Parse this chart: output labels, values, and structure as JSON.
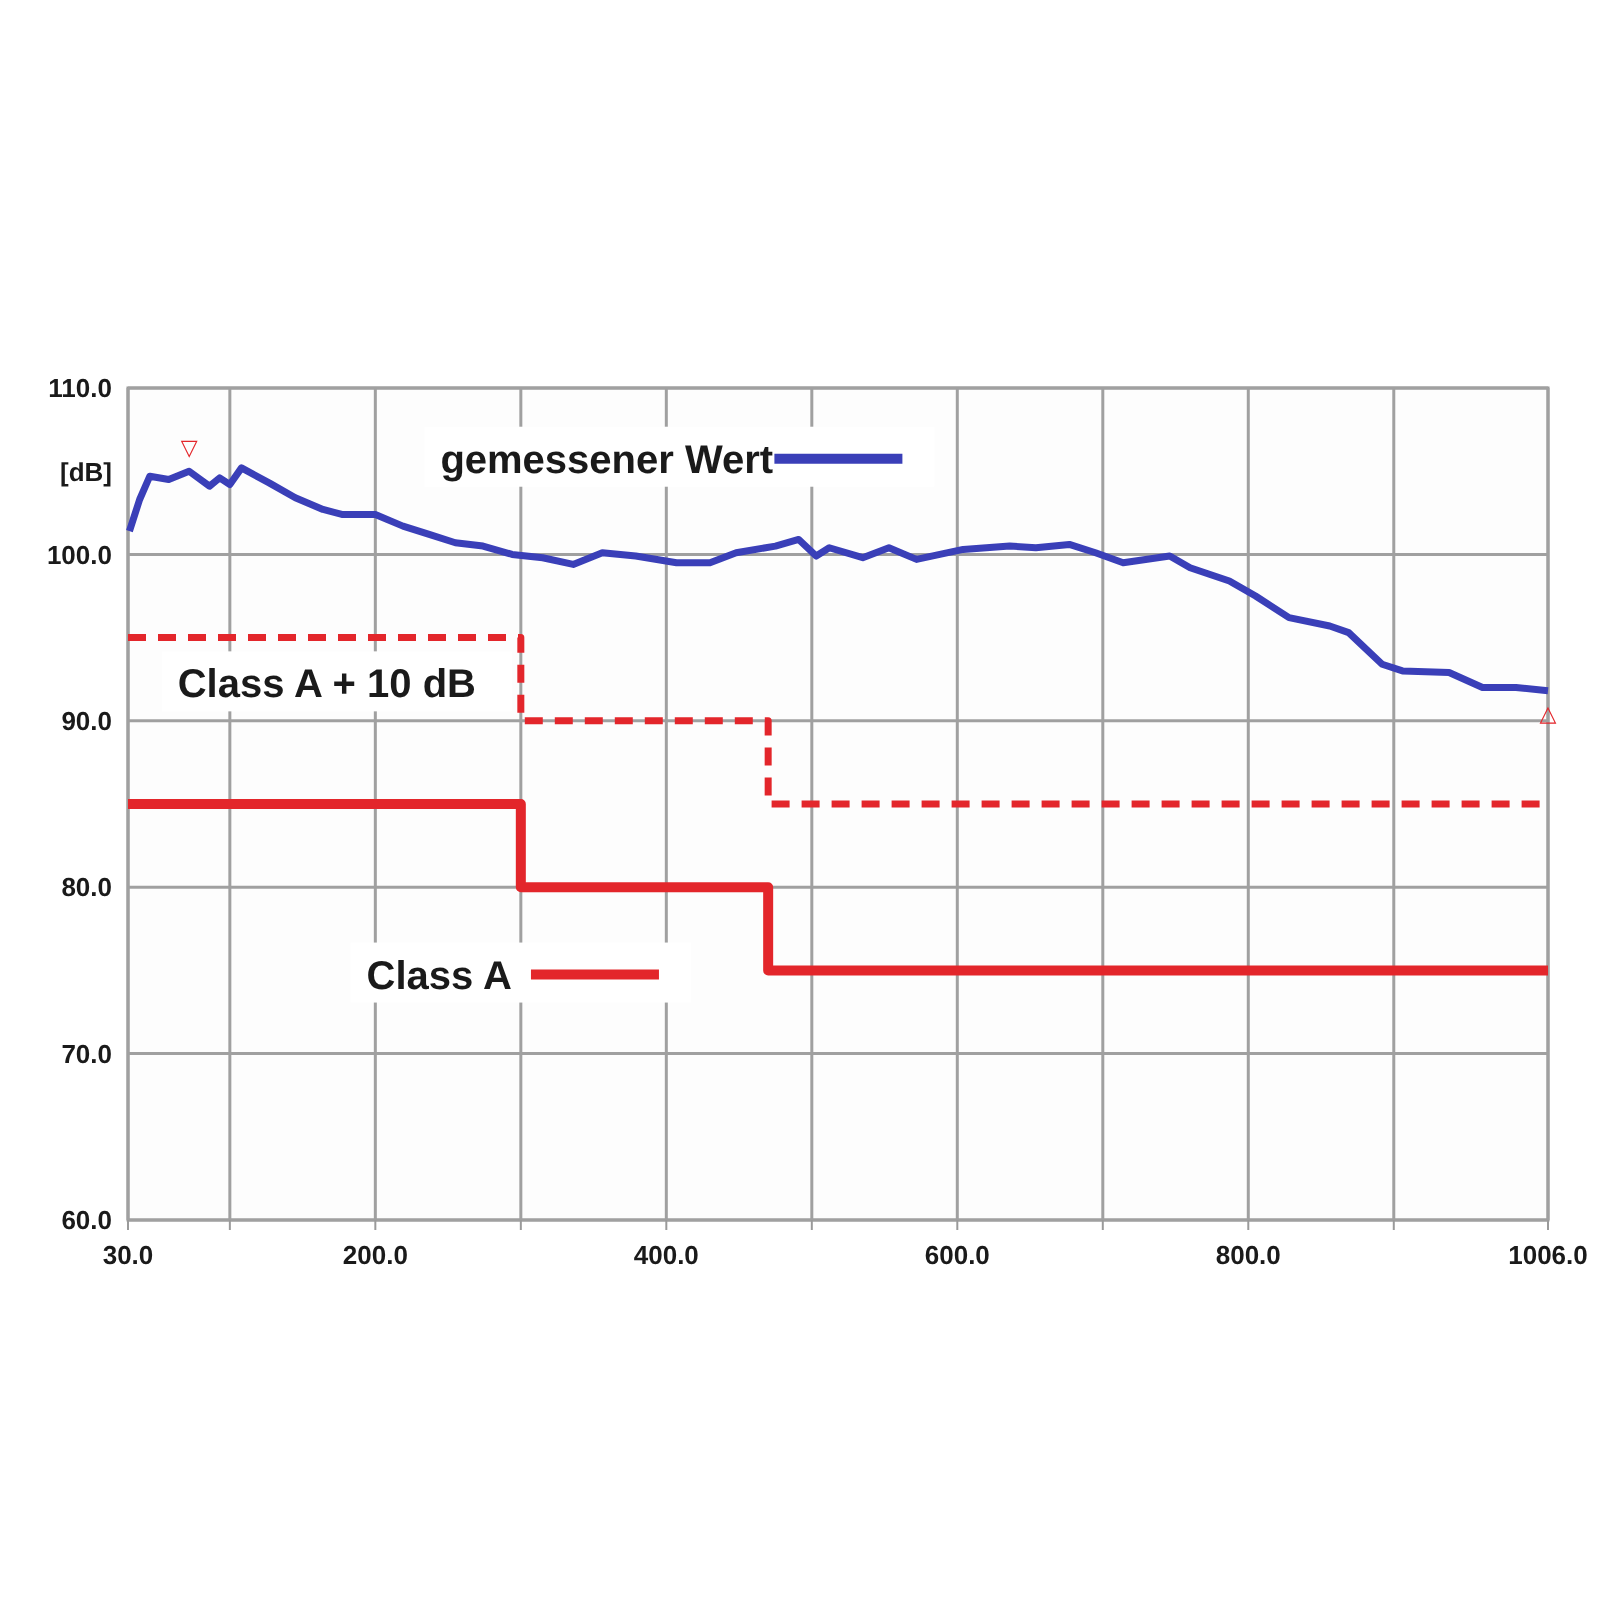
{
  "chart_data": {
    "type": "line",
    "ylabel": "[dB]",
    "xlim": [
      30,
      1006
    ],
    "ylim": [
      60,
      110
    ],
    "xticks": [
      {
        "value": 30,
        "label": "30.0"
      },
      {
        "value": 100,
        "label": null
      },
      {
        "value": 200,
        "label": "200.0"
      },
      {
        "value": 300,
        "label": null
      },
      {
        "value": 400,
        "label": "400.0"
      },
      {
        "value": 500,
        "label": null
      },
      {
        "value": 600,
        "label": "600.0"
      },
      {
        "value": 700,
        "label": null
      },
      {
        "value": 800,
        "label": "800.0"
      },
      {
        "value": 900,
        "label": null
      },
      {
        "value": 1006,
        "label": "1006.0"
      }
    ],
    "yticks": [
      {
        "value": 60,
        "label": "60.0"
      },
      {
        "value": 70,
        "label": "70.0"
      },
      {
        "value": 80,
        "label": "80.0"
      },
      {
        "value": 90,
        "label": "90.0"
      },
      {
        "value": 100,
        "label": "100.0"
      },
      {
        "value": 110,
        "label": "110.0"
      }
    ],
    "grid": true,
    "legend": "top",
    "series": [
      {
        "name": "gemessener Wert",
        "color": "#3a3fb8",
        "line_style": "solid",
        "x": [
          31,
          38,
          45,
          58,
          72,
          86,
          93,
          100,
          108,
          127,
          145,
          164,
          177,
          200,
          219,
          237,
          255,
          274,
          294,
          315,
          336,
          356,
          379,
          407,
          430,
          448,
          475,
          491,
          503,
          512,
          535,
          553,
          572,
          604,
          636,
          654,
          677,
          695,
          714,
          746,
          760,
          787,
          805,
          828,
          856,
          869,
          892,
          906,
          938,
          961,
          984,
          1006
        ],
        "values": [
          101.4,
          103.3,
          104.7,
          104.5,
          105.0,
          104.1,
          104.6,
          104.2,
          105.2,
          104.3,
          103.4,
          102.7,
          102.4,
          102.4,
          101.7,
          101.2,
          100.7,
          100.5,
          100.0,
          99.8,
          99.4,
          100.1,
          99.9,
          99.5,
          99.5,
          100.1,
          100.5,
          100.9,
          99.9,
          100.4,
          99.8,
          100.4,
          99.7,
          100.3,
          100.5,
          100.4,
          100.6,
          100.1,
          99.5,
          99.9,
          99.2,
          98.4,
          97.5,
          96.2,
          95.7,
          95.3,
          93.4,
          93.0,
          92.9,
          92.0,
          92.0,
          91.8
        ]
      },
      {
        "name": "Class A + 10 dB",
        "type": "step",
        "color": "#e3262b",
        "line_style": "dashed",
        "x": [
          30,
          300,
          470,
          1006
        ],
        "values": [
          95,
          90,
          85,
          85
        ]
      },
      {
        "name": "Class A",
        "type": "step",
        "color": "#e3262b",
        "line_style": "solid",
        "x": [
          30,
          300,
          470,
          1006
        ],
        "values": [
          85,
          80,
          75,
          75
        ]
      }
    ],
    "annotations": [
      {
        "text": "▽",
        "x": 72,
        "y": 105.0
      },
      {
        "text": "△",
        "x": 1006,
        "y": 91.8
      }
    ]
  }
}
